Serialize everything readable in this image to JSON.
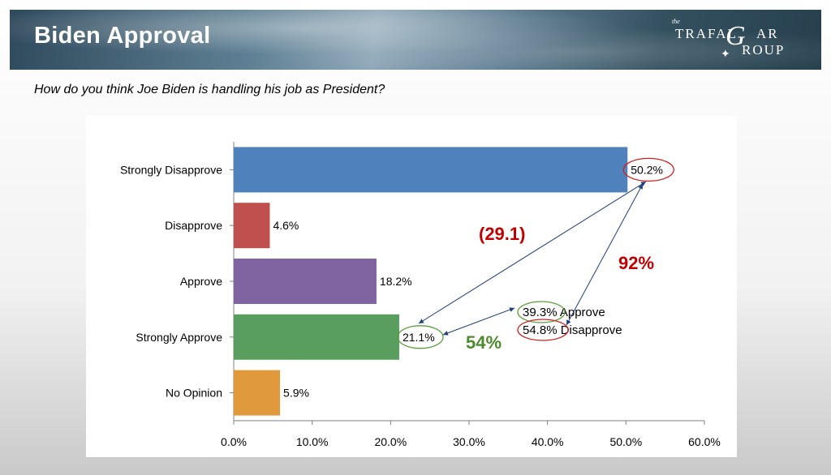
{
  "header": {
    "title": "Biden Approval",
    "logo": {
      "the": "the",
      "line1": "TRAFAL",
      "g": "G",
      "line1b": "AR",
      "line2": "ROUP"
    }
  },
  "question": "How do you think Joe Biden is handling his job as President?",
  "chart_data": {
    "type": "bar",
    "orientation": "horizontal",
    "categories": [
      "Strongly Disapprove",
      "Disapprove",
      "Approve",
      "Strongly Approve",
      "No Opinion"
    ],
    "values": [
      50.2,
      4.6,
      18.2,
      21.1,
      5.9
    ],
    "value_labels": [
      "50.2%",
      "4.6%",
      "18.2%",
      "21.1%",
      "5.9%"
    ],
    "colors": [
      "#4f81bd",
      "#c0504d",
      "#8064a2",
      "#5a9e5f",
      "#e09a3c"
    ],
    "xlim": [
      0,
      60
    ],
    "xticks": [
      0,
      10,
      20,
      30,
      40,
      50,
      60
    ],
    "xtick_labels": [
      "0.0%",
      "10.0%",
      "20.0%",
      "30.0%",
      "40.0%",
      "50.0%",
      "60.0%"
    ],
    "grid": false,
    "annotations": {
      "approve_total": "39.3%",
      "approve_word": "Approve",
      "disapprove_total": "54.8%",
      "disapprove_word": "Disapprove",
      "net_strong": "(29.1)",
      "strong_pct": "54%",
      "disapprove_pct": "92%"
    },
    "annotation_colors": {
      "red": "#c00000",
      "green": "#4e8a2e",
      "arrow": "#1f3f7a",
      "green_ellipse": "#5a9e3a",
      "red_ellipse": "#d02020"
    }
  }
}
